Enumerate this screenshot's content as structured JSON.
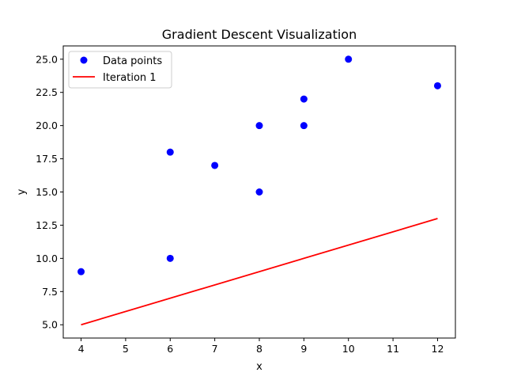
{
  "chart_data": {
    "type": "scatter",
    "title": "Gradient Descent Visualization",
    "xlabel": "x",
    "ylabel": "y",
    "xlim": [
      3.6,
      12.4
    ],
    "ylim": [
      4.0,
      26.0
    ],
    "xticks": [
      4,
      5,
      6,
      7,
      8,
      9,
      10,
      11,
      12
    ],
    "yticks": [
      5.0,
      7.5,
      10.0,
      12.5,
      15.0,
      17.5,
      20.0,
      22.5,
      25.0
    ],
    "xtick_labels": [
      "4",
      "5",
      "6",
      "7",
      "8",
      "9",
      "10",
      "11",
      "12"
    ],
    "ytick_labels": [
      "5.0",
      "7.5",
      "10.0",
      "12.5",
      "15.0",
      "17.5",
      "20.0",
      "22.5",
      "25.0"
    ],
    "grid": false,
    "legend_position": "top-left",
    "series": [
      {
        "name": "Data points",
        "kind": "scatter",
        "color": "#0000ff",
        "points": [
          {
            "x": 4,
            "y": 9
          },
          {
            "x": 6,
            "y": 10
          },
          {
            "x": 6,
            "y": 18
          },
          {
            "x": 7,
            "y": 17
          },
          {
            "x": 8,
            "y": 15
          },
          {
            "x": 8,
            "y": 20
          },
          {
            "x": 9,
            "y": 20
          },
          {
            "x": 9,
            "y": 22
          },
          {
            "x": 10,
            "y": 25
          },
          {
            "x": 12,
            "y": 23
          }
        ]
      },
      {
        "name": "Iteration 1",
        "kind": "line",
        "color": "#ff0000",
        "points": [
          {
            "x": 4,
            "y": 5
          },
          {
            "x": 12,
            "y": 13
          }
        ]
      }
    ]
  }
}
